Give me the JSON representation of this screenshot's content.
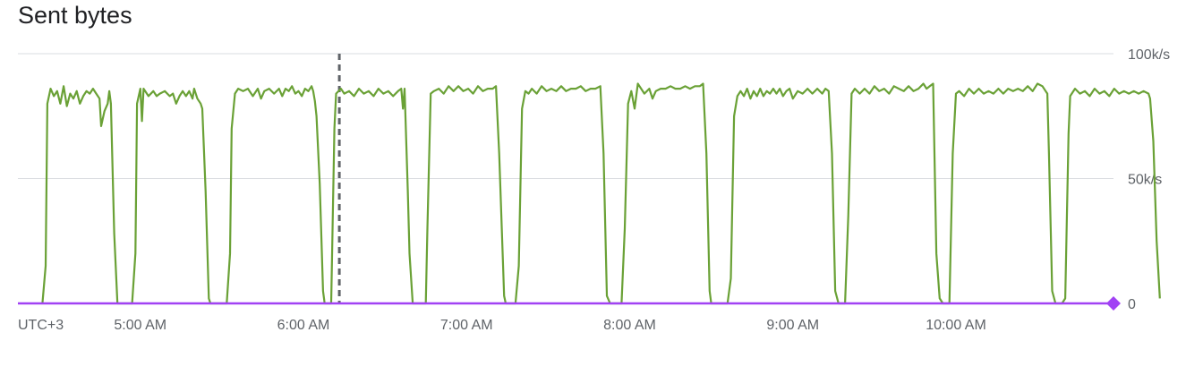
{
  "chart_data": {
    "type": "line",
    "title": "Sent bytes",
    "timezone_label": "UTC+3",
    "x_tick_labels": [
      "5:00 AM",
      "6:00 AM",
      "7:00 AM",
      "8:00 AM",
      "9:00 AM",
      "10:00 AM"
    ],
    "x_tick_hours": [
      5,
      6,
      7,
      8,
      9,
      10
    ],
    "xlim_hours": [
      4.33,
      10.93
    ],
    "y_tick_labels": [
      "100k/s",
      "50k/s",
      "0"
    ],
    "y_tick_values": [
      100000,
      50000,
      0
    ],
    "ylim": [
      0,
      100000
    ],
    "grid": true,
    "cursor_hour": 6.22,
    "colors": {
      "sent_bytes": "#6aa136",
      "baseline": "#a142f4",
      "cursor": "#5f6368",
      "grid": "#dadce0"
    },
    "series": [
      {
        "color": "#6aa136",
        "points": [
          [
            4.4,
            0
          ],
          [
            4.42,
            15000
          ],
          [
            4.43,
            80000
          ],
          [
            4.45,
            86000
          ],
          [
            4.47,
            83000
          ],
          [
            4.49,
            85000
          ],
          [
            4.51,
            80000
          ],
          [
            4.53,
            87000
          ],
          [
            4.55,
            79000
          ],
          [
            4.57,
            84000
          ],
          [
            4.59,
            82000
          ],
          [
            4.61,
            85000
          ],
          [
            4.63,
            80000
          ],
          [
            4.65,
            83000
          ],
          [
            4.67,
            85000
          ],
          [
            4.69,
            84000
          ],
          [
            4.71,
            86000
          ],
          [
            4.73,
            84000
          ],
          [
            4.75,
            82000
          ],
          [
            4.76,
            71000
          ],
          [
            4.78,
            77000
          ],
          [
            4.8,
            80000
          ],
          [
            4.81,
            85000
          ],
          [
            4.82,
            80000
          ],
          [
            4.84,
            28000
          ],
          [
            4.86,
            0
          ],
          [
            4.95,
            0
          ],
          [
            4.97,
            20000
          ],
          [
            4.98,
            80000
          ],
          [
            5.0,
            86000
          ],
          [
            5.01,
            73000
          ],
          [
            5.02,
            86000
          ],
          [
            5.05,
            83000
          ],
          [
            5.08,
            85000
          ],
          [
            5.1,
            83000
          ],
          [
            5.12,
            84000
          ],
          [
            5.15,
            85000
          ],
          [
            5.18,
            83000
          ],
          [
            5.2,
            84000
          ],
          [
            5.22,
            80000
          ],
          [
            5.24,
            83000
          ],
          [
            5.26,
            85000
          ],
          [
            5.28,
            83000
          ],
          [
            5.3,
            85000
          ],
          [
            5.32,
            82000
          ],
          [
            5.33,
            86000
          ],
          [
            5.35,
            82000
          ],
          [
            5.37,
            80000
          ],
          [
            5.38,
            78000
          ],
          [
            5.4,
            45000
          ],
          [
            5.42,
            2000
          ],
          [
            5.43,
            0
          ],
          [
            5.53,
            0
          ],
          [
            5.55,
            20000
          ],
          [
            5.56,
            70000
          ],
          [
            5.58,
            84000
          ],
          [
            5.6,
            86000
          ],
          [
            5.63,
            85000
          ],
          [
            5.66,
            86000
          ],
          [
            5.69,
            83000
          ],
          [
            5.72,
            86000
          ],
          [
            5.74,
            82000
          ],
          [
            5.76,
            85000
          ],
          [
            5.79,
            86000
          ],
          [
            5.82,
            84000
          ],
          [
            5.85,
            86000
          ],
          [
            5.87,
            83000
          ],
          [
            5.89,
            86000
          ],
          [
            5.91,
            85000
          ],
          [
            5.93,
            87000
          ],
          [
            5.95,
            84000
          ],
          [
            5.97,
            85000
          ],
          [
            5.99,
            83000
          ],
          [
            6.01,
            86000
          ],
          [
            6.03,
            85000
          ],
          [
            6.05,
            87000
          ],
          [
            6.06,
            85000
          ],
          [
            6.07,
            81000
          ],
          [
            6.08,
            75000
          ],
          [
            6.1,
            48000
          ],
          [
            6.12,
            5000
          ],
          [
            6.13,
            0
          ],
          [
            6.17,
            0
          ],
          [
            6.19,
            70000
          ],
          [
            6.2,
            84000
          ],
          [
            6.23,
            86000
          ],
          [
            6.25,
            84000
          ],
          [
            6.28,
            85000
          ],
          [
            6.31,
            83000
          ],
          [
            6.34,
            86000
          ],
          [
            6.37,
            84000
          ],
          [
            6.4,
            85000
          ],
          [
            6.43,
            83000
          ],
          [
            6.46,
            86000
          ],
          [
            6.49,
            84000
          ],
          [
            6.52,
            85000
          ],
          [
            6.55,
            83000
          ],
          [
            6.58,
            85000
          ],
          [
            6.6,
            86000
          ],
          [
            6.61,
            78000
          ],
          [
            6.62,
            86000
          ],
          [
            6.64,
            45000
          ],
          [
            6.65,
            20000
          ],
          [
            6.67,
            0
          ],
          [
            6.75,
            0
          ],
          [
            6.76,
            30000
          ],
          [
            6.78,
            84000
          ],
          [
            6.8,
            85000
          ],
          [
            6.83,
            86000
          ],
          [
            6.86,
            84000
          ],
          [
            6.89,
            87000
          ],
          [
            6.92,
            85000
          ],
          [
            6.95,
            87000
          ],
          [
            6.98,
            85000
          ],
          [
            7.01,
            86000
          ],
          [
            7.04,
            84000
          ],
          [
            7.07,
            87000
          ],
          [
            7.1,
            85000
          ],
          [
            7.13,
            86000
          ],
          [
            7.16,
            86000
          ],
          [
            7.18,
            87000
          ],
          [
            7.2,
            60000
          ],
          [
            7.23,
            3000
          ],
          [
            7.24,
            0
          ],
          [
            7.3,
            0
          ],
          [
            7.32,
            15000
          ],
          [
            7.34,
            78000
          ],
          [
            7.36,
            85000
          ],
          [
            7.38,
            84000
          ],
          [
            7.4,
            86000
          ],
          [
            7.43,
            84000
          ],
          [
            7.46,
            87000
          ],
          [
            7.49,
            85000
          ],
          [
            7.52,
            86000
          ],
          [
            7.55,
            85000
          ],
          [
            7.58,
            87000
          ],
          [
            7.61,
            85000
          ],
          [
            7.64,
            86000
          ],
          [
            7.67,
            86000
          ],
          [
            7.7,
            87000
          ],
          [
            7.73,
            85000
          ],
          [
            7.76,
            86000
          ],
          [
            7.79,
            86000
          ],
          [
            7.82,
            87000
          ],
          [
            7.84,
            60000
          ],
          [
            7.86,
            3000
          ],
          [
            7.88,
            0
          ],
          [
            7.95,
            0
          ],
          [
            7.97,
            30000
          ],
          [
            7.99,
            80000
          ],
          [
            8.01,
            85000
          ],
          [
            8.03,
            78000
          ],
          [
            8.05,
            88000
          ],
          [
            8.07,
            86000
          ],
          [
            8.09,
            84000
          ],
          [
            8.12,
            86000
          ],
          [
            8.14,
            82000
          ],
          [
            8.16,
            85000
          ],
          [
            8.19,
            86000
          ],
          [
            8.22,
            86000
          ],
          [
            8.25,
            87000
          ],
          [
            8.28,
            86000
          ],
          [
            8.31,
            86000
          ],
          [
            8.34,
            87000
          ],
          [
            8.37,
            86000
          ],
          [
            8.4,
            87000
          ],
          [
            8.43,
            87000
          ],
          [
            8.45,
            88000
          ],
          [
            8.47,
            60000
          ],
          [
            8.49,
            5000
          ],
          [
            8.5,
            0
          ],
          [
            8.6,
            0
          ],
          [
            8.62,
            10000
          ],
          [
            8.64,
            75000
          ],
          [
            8.66,
            83000
          ],
          [
            8.68,
            85000
          ],
          [
            8.7,
            83000
          ],
          [
            8.72,
            86000
          ],
          [
            8.74,
            82000
          ],
          [
            8.76,
            85000
          ],
          [
            8.78,
            83000
          ],
          [
            8.8,
            86000
          ],
          [
            8.82,
            83000
          ],
          [
            8.84,
            85000
          ],
          [
            8.86,
            84000
          ],
          [
            8.88,
            86000
          ],
          [
            8.9,
            84000
          ],
          [
            8.92,
            86000
          ],
          [
            8.94,
            83000
          ],
          [
            8.96,
            85000
          ],
          [
            8.98,
            86000
          ],
          [
            9.0,
            82000
          ],
          [
            9.03,
            85000
          ],
          [
            9.06,
            84000
          ],
          [
            9.09,
            86000
          ],
          [
            9.12,
            84000
          ],
          [
            9.15,
            86000
          ],
          [
            9.18,
            84000
          ],
          [
            9.2,
            86000
          ],
          [
            9.22,
            85000
          ],
          [
            9.24,
            60000
          ],
          [
            9.26,
            5000
          ],
          [
            9.28,
            0
          ],
          [
            9.32,
            0
          ],
          [
            9.34,
            35000
          ],
          [
            9.36,
            84000
          ],
          [
            9.38,
            86000
          ],
          [
            9.41,
            84000
          ],
          [
            9.44,
            86000
          ],
          [
            9.47,
            84000
          ],
          [
            9.5,
            87000
          ],
          [
            9.53,
            85000
          ],
          [
            9.56,
            86000
          ],
          [
            9.59,
            84000
          ],
          [
            9.62,
            87000
          ],
          [
            9.65,
            86000
          ],
          [
            9.68,
            85000
          ],
          [
            9.71,
            87000
          ],
          [
            9.74,
            85000
          ],
          [
            9.77,
            86000
          ],
          [
            9.8,
            88000
          ],
          [
            9.82,
            86000
          ],
          [
            9.84,
            87000
          ],
          [
            9.86,
            88000
          ],
          [
            9.88,
            20000
          ],
          [
            9.9,
            2000
          ],
          [
            9.92,
            0
          ],
          [
            9.96,
            0
          ],
          [
            9.98,
            60000
          ],
          [
            10.0,
            84000
          ],
          [
            10.02,
            85000
          ],
          [
            10.05,
            83000
          ],
          [
            10.08,
            86000
          ],
          [
            10.11,
            84000
          ],
          [
            10.14,
            86000
          ],
          [
            10.17,
            84000
          ],
          [
            10.2,
            85000
          ],
          [
            10.23,
            84000
          ],
          [
            10.26,
            86000
          ],
          [
            10.29,
            84000
          ],
          [
            10.32,
            86000
          ],
          [
            10.35,
            85000
          ],
          [
            10.38,
            86000
          ],
          [
            10.41,
            85000
          ],
          [
            10.44,
            87000
          ],
          [
            10.47,
            85000
          ],
          [
            10.5,
            88000
          ],
          [
            10.53,
            87000
          ],
          [
            10.55,
            85000
          ],
          [
            10.56,
            84000
          ],
          [
            10.57,
            60000
          ],
          [
            10.59,
            5000
          ],
          [
            10.61,
            0
          ],
          [
            10.65,
            0
          ],
          [
            10.67,
            2000
          ],
          [
            10.69,
            68000
          ],
          [
            10.7,
            83000
          ],
          [
            10.73,
            86000
          ],
          [
            10.76,
            84000
          ],
          [
            10.79,
            85000
          ],
          [
            10.82,
            83000
          ],
          [
            10.85,
            86000
          ],
          [
            10.88,
            84000
          ],
          [
            10.91,
            85000
          ],
          [
            10.94,
            83000
          ],
          [
            10.97,
            86000
          ],
          [
            11.0,
            84000
          ],
          [
            11.03,
            85000
          ],
          [
            11.06,
            84000
          ],
          [
            11.09,
            85000
          ],
          [
            11.12,
            84000
          ],
          [
            11.15,
            85000
          ],
          [
            11.18,
            84000
          ],
          [
            11.19,
            82000
          ],
          [
            11.21,
            65000
          ],
          [
            11.23,
            25000
          ],
          [
            11.25,
            2000
          ]
        ]
      }
    ]
  }
}
